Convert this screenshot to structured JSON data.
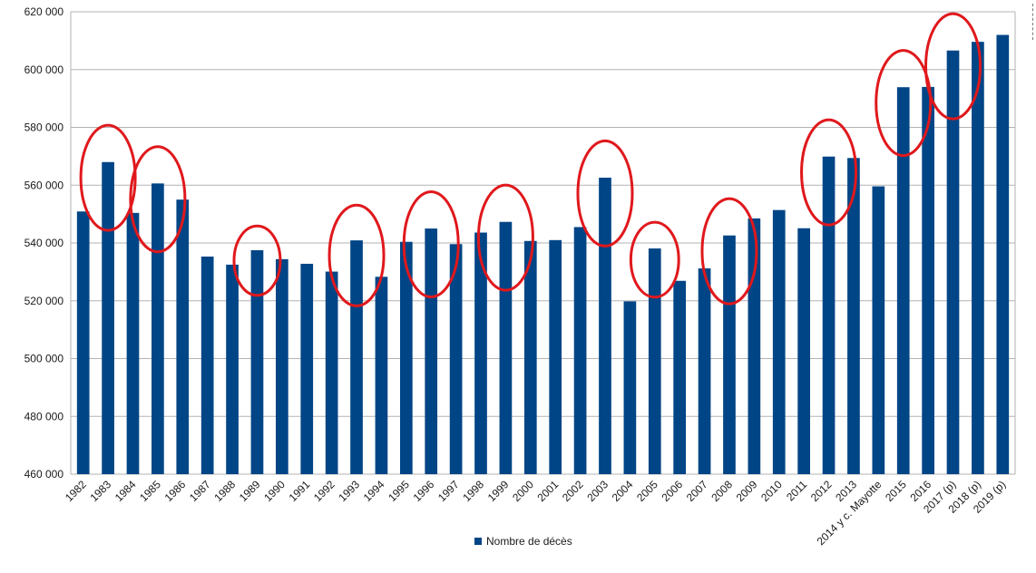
{
  "chart_data": {
    "type": "bar",
    "categories": [
      "1982",
      "1983",
      "1984",
      "1985",
      "1986",
      "1987",
      "1988",
      "1989",
      "1990",
      "1991",
      "1992",
      "1993",
      "1994",
      "1995",
      "1996",
      "1997",
      "1998",
      "1999",
      "2000",
      "2001",
      "2002",
      "2003",
      "2004",
      "2005",
      "2006",
      "2007",
      "2008",
      "2009",
      "2010",
      "2011",
      "2012",
      "2013",
      "2014 y c. Mayotte",
      "2015",
      "2016",
      "2017 (p)",
      "2018 (p)",
      "2019 (p)"
    ],
    "series": [
      {
        "name": "Nombre de décès",
        "values": [
          550900,
          568000,
          550400,
          560600,
          555000,
          535300,
          532500,
          537500,
          534400,
          532800,
          530100,
          540900,
          528300,
          540400,
          545000,
          539600,
          543600,
          547300,
          540700,
          541000,
          545500,
          562600,
          519800,
          538100,
          526900,
          531200,
          542600,
          548500,
          551400,
          545100,
          569900,
          569400,
          559600,
          593900,
          594000,
          606600,
          609600,
          612000
        ]
      }
    ],
    "highlighted": [
      "1983",
      "1985",
      "1989",
      "1993",
      "1996",
      "1999",
      "2003",
      "2005",
      "2008",
      "2012",
      "2015",
      "2017 (p)"
    ],
    "yticks": [
      "460 000",
      "480 000",
      "500 000",
      "520 000",
      "540 000",
      "560 000",
      "580 000",
      "600 000",
      "620 000"
    ],
    "ylim": [
      460000,
      620000
    ],
    "grid": "horizontal",
    "legend_position": "bottom",
    "colors": {
      "bar": "#004586",
      "highlight": "#e0181c",
      "grid": "#b3b3b3"
    },
    "title": "",
    "xlabel": "",
    "ylabel": ""
  },
  "legend": {
    "label": "Nombre de décès"
  }
}
